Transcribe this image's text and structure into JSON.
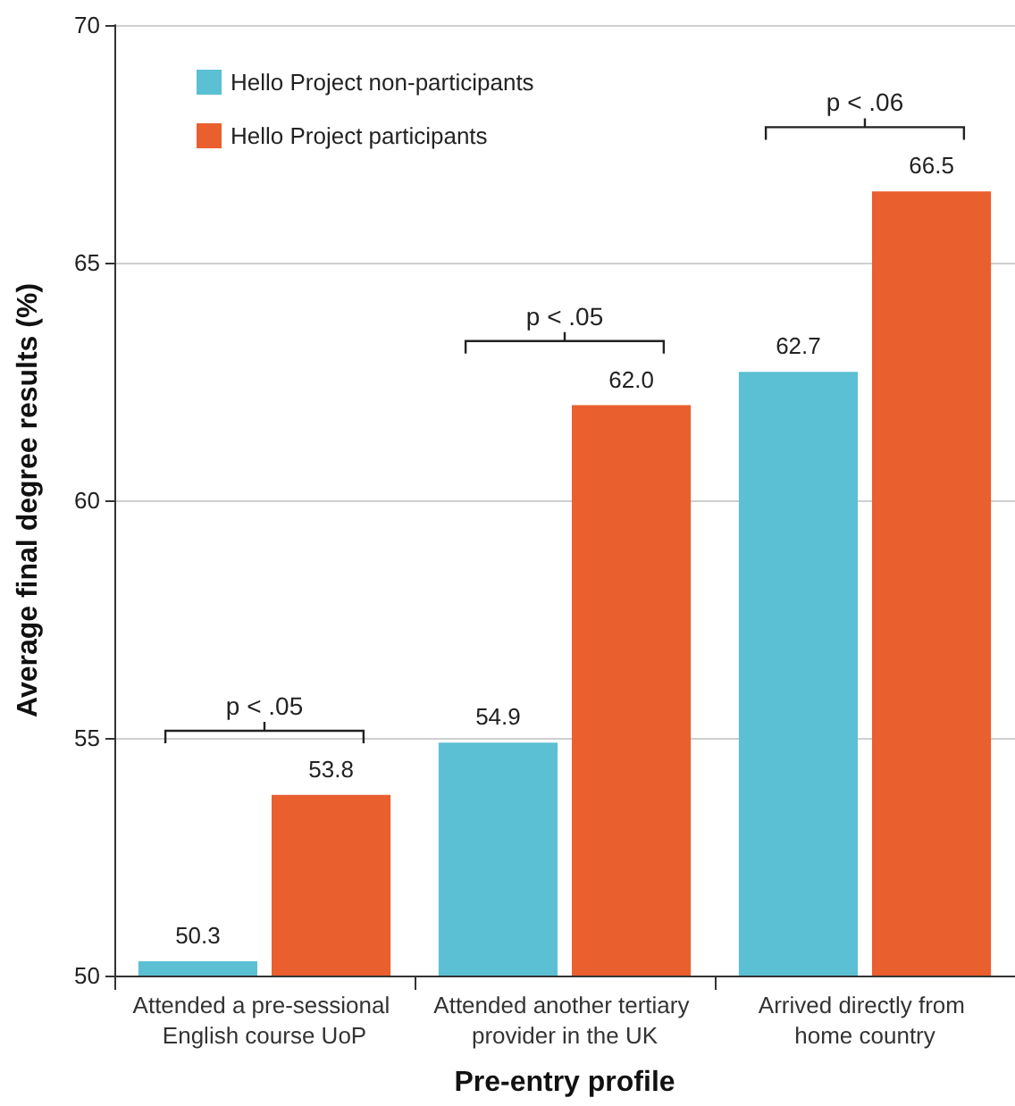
{
  "chart_data": {
    "type": "bar",
    "xlabel": "Pre-entry profile",
    "ylabel": "Average final degree results (%)",
    "categories": [
      "Attended a pre-sessional English course UoP",
      "Attended another tertiary provider in the UK",
      "Arrived directly from home country"
    ],
    "series": [
      {
        "name": "Hello Project non-participants",
        "color": "#5bc0d4",
        "values": [
          50.3,
          54.9,
          62.7
        ]
      },
      {
        "name": "Hello Project participants",
        "color": "#e95f2e",
        "values": [
          53.8,
          62.0,
          66.5
        ],
        "value_labels": [
          "53.8",
          "62.0",
          "66.5"
        ]
      }
    ],
    "ylim": [
      50,
      70
    ],
    "yticks": [
      50,
      55,
      60,
      65,
      70
    ],
    "grid": "y",
    "legend": "top left",
    "data_labels": true,
    "annotations": [
      "p < .05",
      "p < .05",
      "p < .06"
    ]
  }
}
